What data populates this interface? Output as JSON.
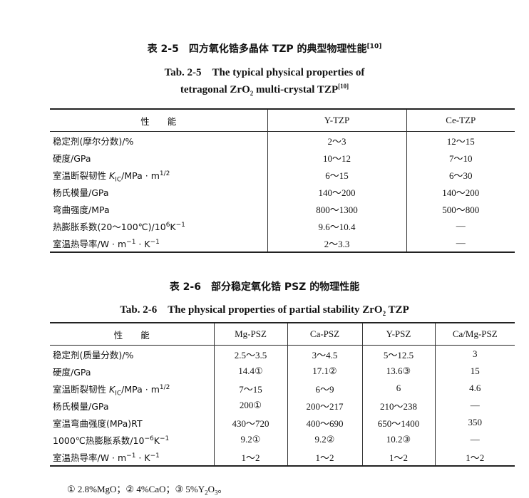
{
  "table1": {
    "title_cn": [
      {
        "t": "表 2-5　四方氧化锆多晶体 TZP 的典型物理性能"
      },
      {
        "t": "[10]",
        "s": "sup"
      }
    ],
    "title_en1": [
      {
        "t": "Tab. 2-5　The typical physical properties of"
      }
    ],
    "title_en2": [
      {
        "t": "tetragonal ZrO"
      },
      {
        "t": "2",
        "s": "sub"
      },
      {
        "t": " multi-crystal TZP"
      },
      {
        "t": "[10]",
        "s": "sup"
      }
    ],
    "headers": [
      "性　　能",
      "Y-TZP",
      "Ce-TZP"
    ],
    "rows": [
      {
        "label": [
          {
            "t": "稳定剂(摩尔分数)/%"
          }
        ],
        "values": [
          "2～3",
          "12～15"
        ]
      },
      {
        "label": [
          {
            "t": "硬度/GPa"
          }
        ],
        "values": [
          "10～12",
          "7～10"
        ]
      },
      {
        "label": [
          {
            "t": "室温断裂韧性 "
          },
          {
            "t": "K",
            "s": "i"
          },
          {
            "t": "IC",
            "s": "sub"
          },
          {
            "t": "/MPa · m"
          },
          {
            "t": "1/2",
            "s": "sup"
          }
        ],
        "values": [
          "6～15",
          "6～30"
        ]
      },
      {
        "label": [
          {
            "t": "杨氏模量/GPa"
          }
        ],
        "values": [
          "140～200",
          "140～200"
        ]
      },
      {
        "label": [
          {
            "t": "弯曲强度/MPa"
          }
        ],
        "values": [
          "800～1300",
          "500～800"
        ]
      },
      {
        "label": [
          {
            "t": "热膨胀系数(20～100℃)/10"
          },
          {
            "t": "6",
            "s": "sup"
          },
          {
            "t": "K"
          },
          {
            "t": "−1",
            "s": "sup"
          }
        ],
        "values": [
          "9.6～10.4",
          "—"
        ]
      },
      {
        "label": [
          {
            "t": "室温热导率/W · m"
          },
          {
            "t": "−1",
            "s": "sup"
          },
          {
            "t": " · K"
          },
          {
            "t": "−1",
            "s": "sup"
          }
        ],
        "values": [
          "2～3.3",
          "—"
        ]
      }
    ]
  },
  "table2": {
    "title_cn": [
      {
        "t": "表 2-6　部分稳定氧化锆 PSZ 的物理性能"
      }
    ],
    "title_en": [
      {
        "t": "Tab. 2-6　The physical properties of partial stability ZrO"
      },
      {
        "t": "2",
        "s": "sub"
      },
      {
        "t": " TZP"
      }
    ],
    "headers": [
      "性　　能",
      "Mg-PSZ",
      "Ca-PSZ",
      "Y-PSZ",
      "Ca/Mg-PSZ"
    ],
    "rows": [
      {
        "label": [
          {
            "t": "稳定剂(质量分数)/%"
          }
        ],
        "values": [
          "2.5～3.5",
          "3～4.5",
          "5～12.5",
          "3"
        ]
      },
      {
        "label": [
          {
            "t": "硬度/GPa"
          }
        ],
        "values": [
          "14.4①",
          "17.1②",
          "13.6③",
          "15"
        ]
      },
      {
        "label": [
          {
            "t": "室温断裂韧性 "
          },
          {
            "t": "K",
            "s": "i"
          },
          {
            "t": "IC",
            "s": "sub"
          },
          {
            "t": "/MPa · m"
          },
          {
            "t": "1/2",
            "s": "sup"
          }
        ],
        "values": [
          "7～15",
          "6～9",
          "6",
          "4.6"
        ]
      },
      {
        "label": [
          {
            "t": "杨氏模量/GPa"
          }
        ],
        "values": [
          "200①",
          "200～217",
          "210～238",
          "—"
        ]
      },
      {
        "label": [
          {
            "t": "室温弯曲强度(MPa)RT"
          }
        ],
        "values": [
          "430～720",
          "400～690",
          "650～1400",
          "350"
        ]
      },
      {
        "label": [
          {
            "t": "1000℃热膨胀系数/10"
          },
          {
            "t": "−6",
            "s": "sup"
          },
          {
            "t": "K"
          },
          {
            "t": "−1",
            "s": "sup"
          }
        ],
        "values": [
          "9.2①",
          "9.2②",
          "10.2③",
          "—"
        ]
      },
      {
        "label": [
          {
            "t": "室温热导率/W · m"
          },
          {
            "t": "−1",
            "s": "sup"
          },
          {
            "t": " · K"
          },
          {
            "t": "−1",
            "s": "sup"
          }
        ],
        "values": [
          "1～2",
          "1～2",
          "1～2",
          "1～2"
        ]
      }
    ],
    "footnote": [
      {
        "t": "① 2.8%MgO；② 4%CaO；③ 5%Y"
      },
      {
        "t": "2",
        "s": "sub"
      },
      {
        "t": "O"
      },
      {
        "t": "3",
        "s": "sub"
      },
      {
        "t": "。"
      }
    ]
  }
}
